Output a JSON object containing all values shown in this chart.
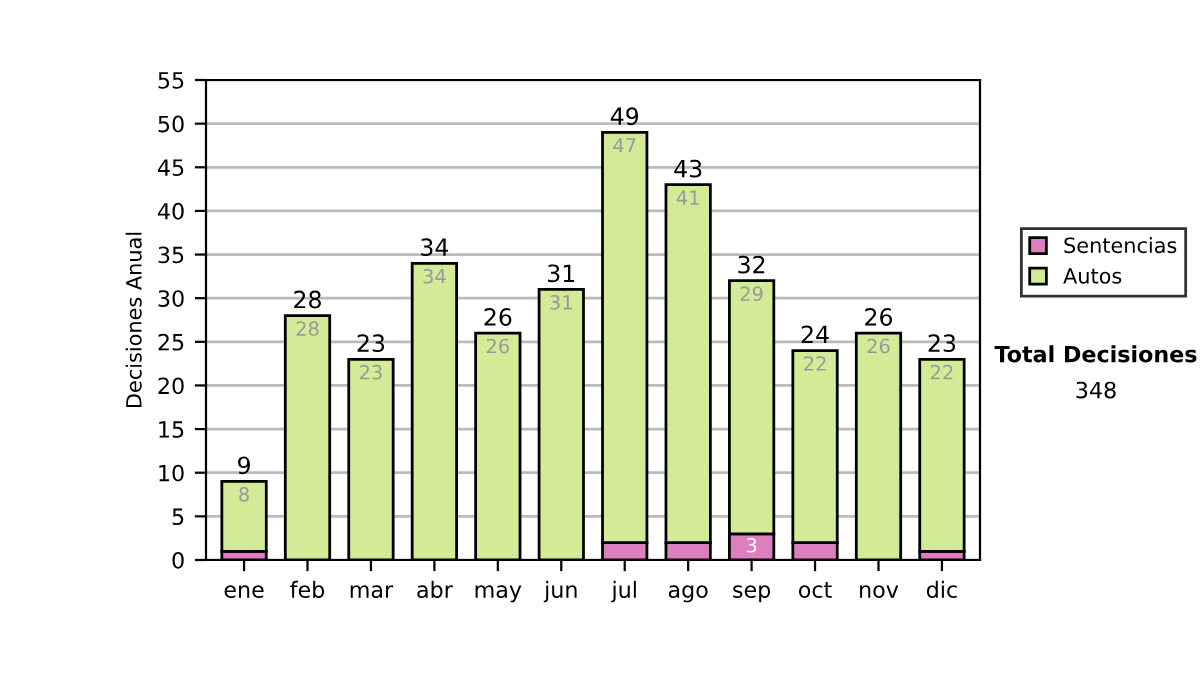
{
  "chart_data": {
    "type": "bar",
    "ylabel": "Decisiones Anual",
    "stacked": true,
    "categories": [
      "ene",
      "feb",
      "mar",
      "abr",
      "may",
      "jun",
      "jul",
      "ago",
      "sep",
      "oct",
      "nov",
      "dic"
    ],
    "series": [
      {
        "name": "Sentencias",
        "color": "#dd7fbf",
        "values": [
          1,
          0,
          0,
          0,
          0,
          0,
          2,
          2,
          3,
          2,
          0,
          1
        ],
        "value_labels": [
          null,
          null,
          null,
          null,
          null,
          null,
          null,
          null,
          "3",
          null,
          null,
          null
        ]
      },
      {
        "name": "Autos",
        "color": "#d3eb96",
        "values": [
          8,
          28,
          23,
          34,
          26,
          31,
          47,
          41,
          29,
          22,
          26,
          22
        ],
        "value_labels": [
          "8",
          "28",
          "23",
          "34",
          "26",
          "31",
          "47",
          "41",
          "29",
          "22",
          "26",
          "22"
        ]
      }
    ],
    "totals": [
      "9",
      "28",
      "23",
      "34",
      "26",
      "31",
      "49",
      "43",
      "32",
      "24",
      "26",
      "23"
    ],
    "ylim": [
      0,
      55
    ],
    "yticks": [
      0,
      5,
      10,
      15,
      20,
      25,
      30,
      35,
      40,
      45,
      50,
      55
    ],
    "grid": "y",
    "legend": "right",
    "annotations": [
      "Total Decisiones",
      "348"
    ]
  }
}
